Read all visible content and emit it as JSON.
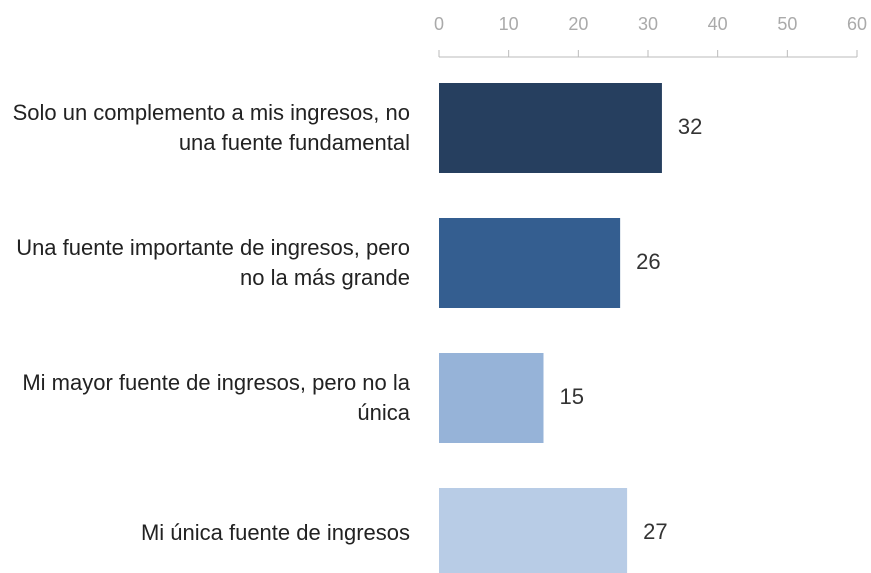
{
  "chart_data": {
    "type": "bar",
    "orientation": "horizontal",
    "categories": [
      "Solo un complemento a mis ingresos, no una fuente fundamental",
      "Una fuente importante de ingresos, pero no la más grande",
      "Mi mayor fuente de ingresos, pero no la única",
      "Mi única fuente de ingresos"
    ],
    "values": [
      32,
      26,
      15,
      27
    ],
    "colors": [
      "#263f5f",
      "#345e90",
      "#96b3d8",
      "#b8cce6"
    ],
    "xlim": [
      0,
      60
    ],
    "xticks": [
      0,
      10,
      20,
      30,
      40,
      50,
      60
    ]
  }
}
